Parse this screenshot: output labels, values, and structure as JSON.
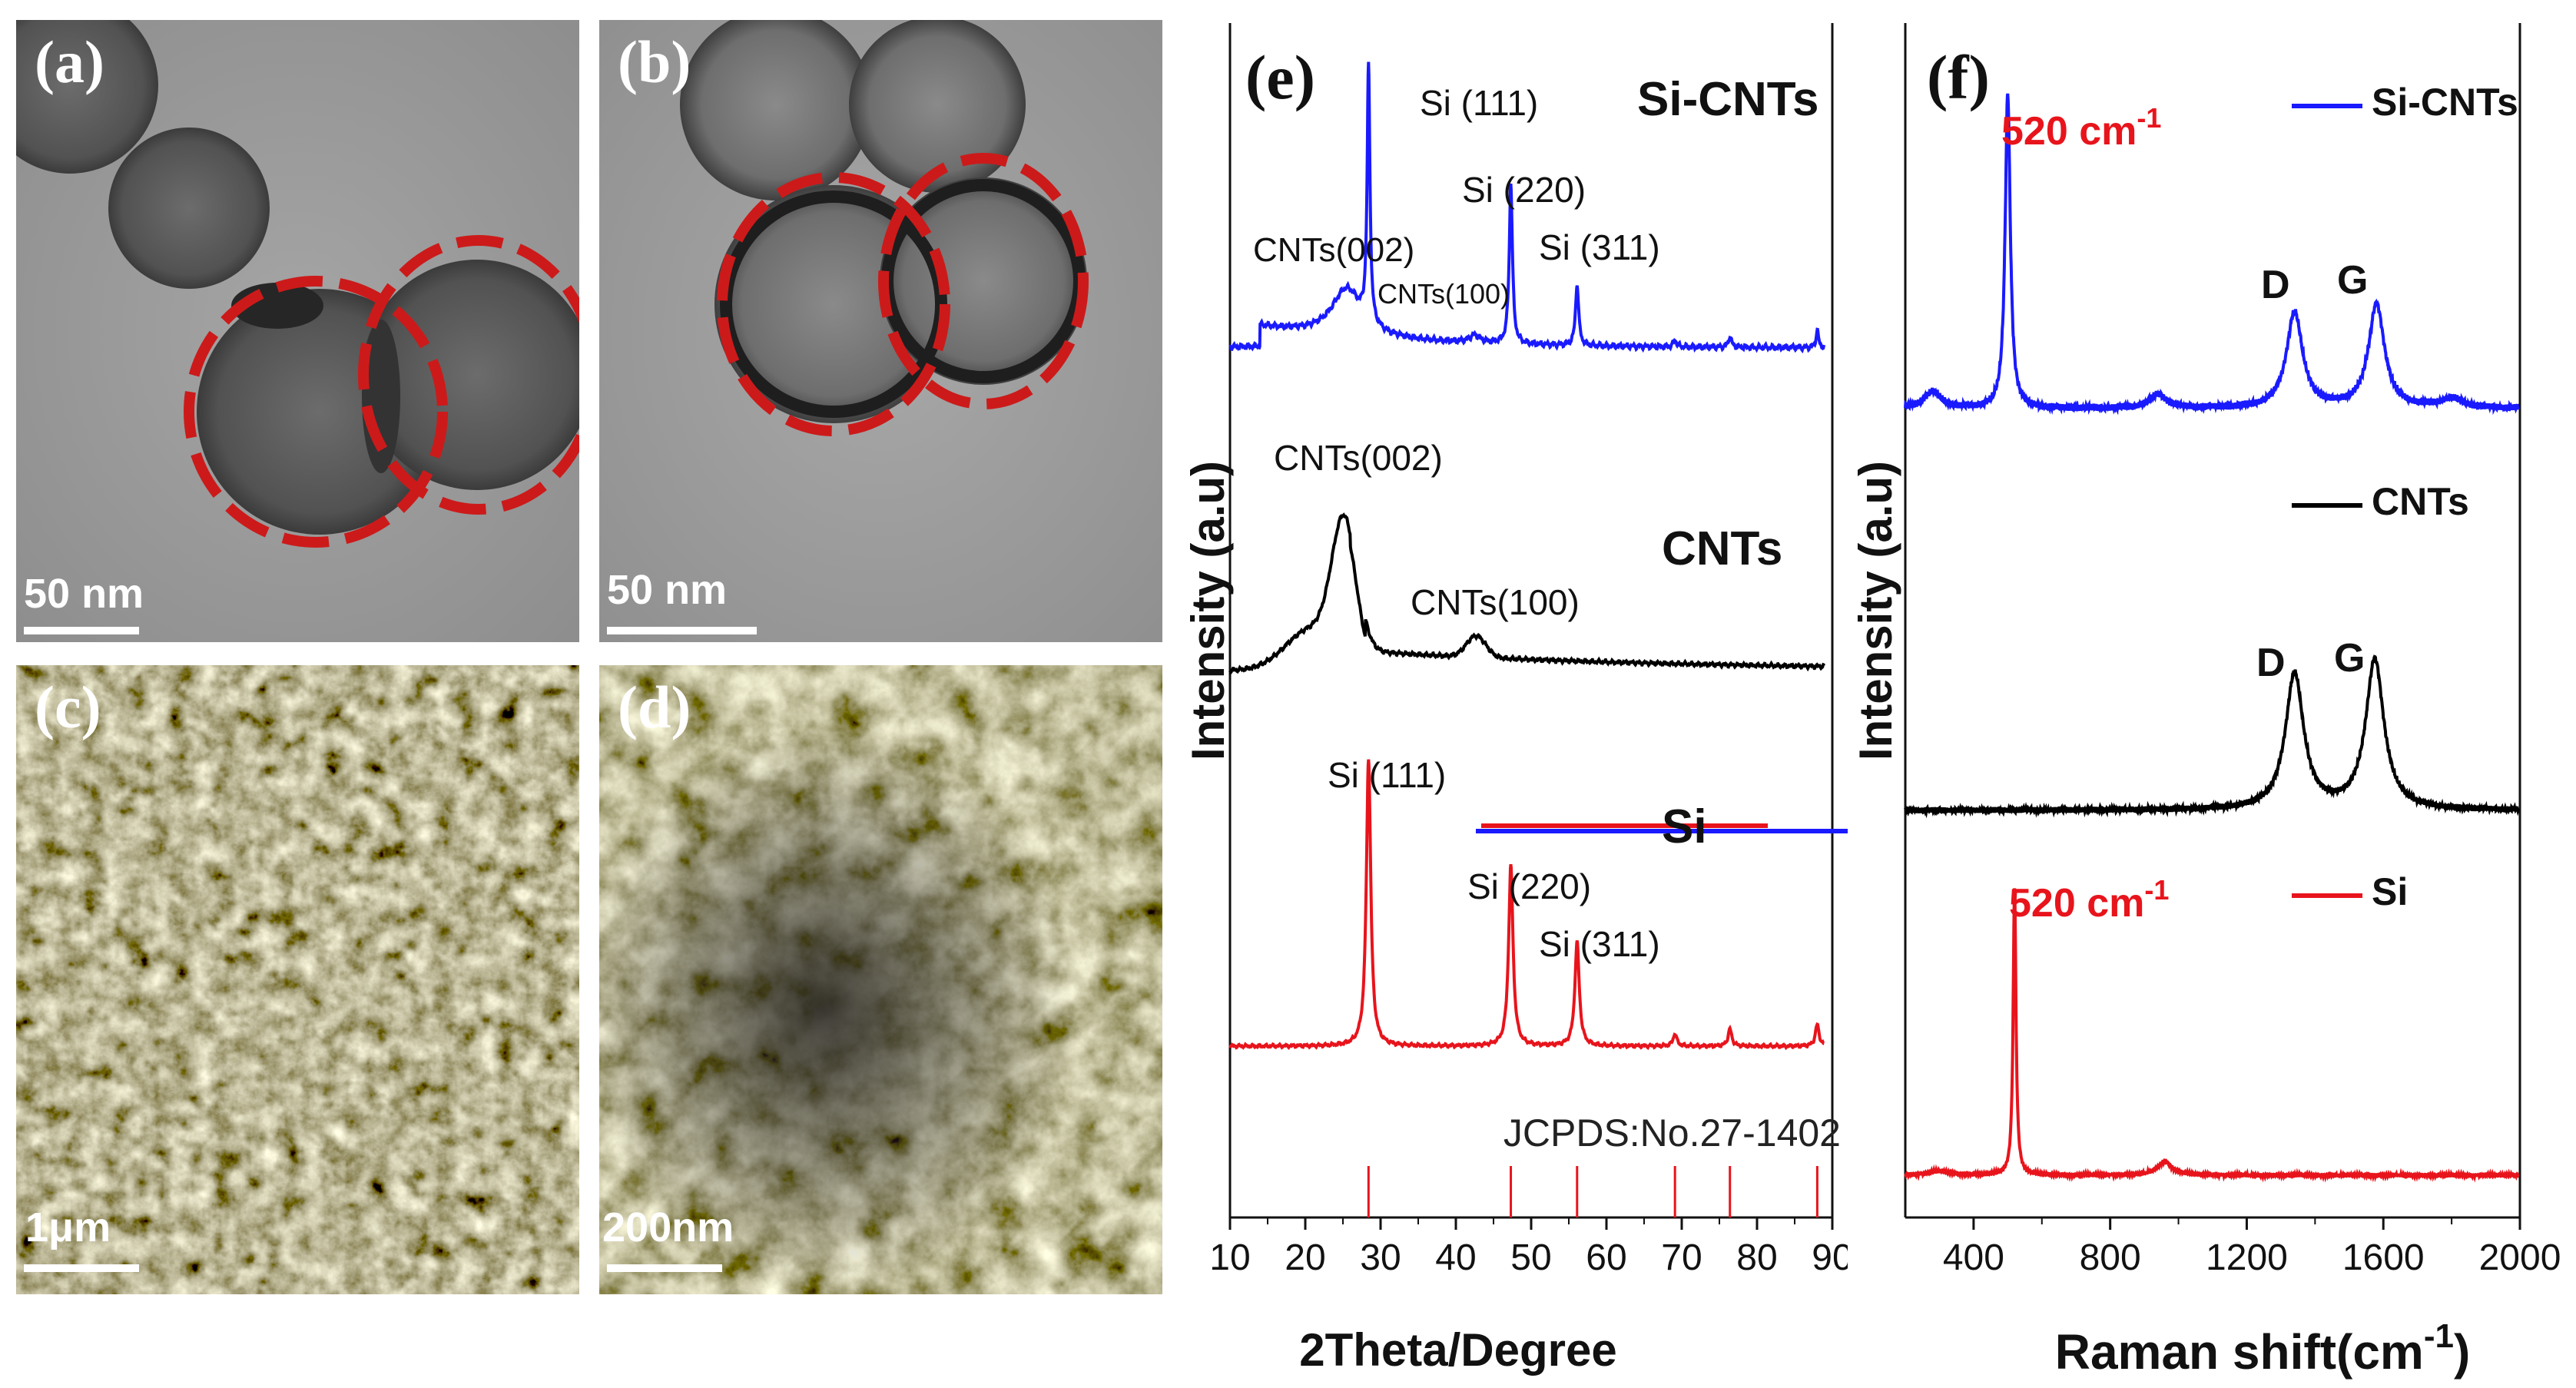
{
  "figure_panels": {
    "a": {
      "label": "(a)",
      "scale_text": "50 nm"
    },
    "b": {
      "label": "(b)",
      "scale_text": "50 nm"
    },
    "c": {
      "label": "(c)",
      "scale_text": "1μm"
    },
    "d": {
      "label": "(d)",
      "scale_text": "200nm"
    }
  },
  "chart_data": [
    {
      "type": "line",
      "panel_label": "(e)",
      "xlabel": "2Theta/Degree",
      "ylabel": "Intensity (a.u)",
      "xlim": [
        10,
        90
      ],
      "x_ticks": [
        10,
        20,
        30,
        40,
        50,
        60,
        70,
        80,
        90
      ],
      "legend": [
        "Si-CNTs",
        "CNTs",
        "Si"
      ],
      "series": [
        {
          "name": "Si-CNTs",
          "color": "#1a1aff",
          "peaks": [
            {
              "label": "CNTs(002)",
              "x": 25.5
            },
            {
              "label": "Si (111)",
              "x": 28.4
            },
            {
              "label": "CNTs(100)",
              "x": 42.5
            },
            {
              "label": "Si (220)",
              "x": 47.3
            },
            {
              "label": "Si (311)",
              "x": 56.1
            }
          ]
        },
        {
          "name": "CNTs",
          "color": "#000000",
          "peaks": [
            {
              "label": "CNTs(002)",
              "x": 25.5
            },
            {
              "label": "CNTs(100)",
              "x": 42.5
            }
          ]
        },
        {
          "name": "Si",
          "color": "#e8141c",
          "peaks": [
            {
              "label": "Si (111)",
              "x": 28.4
            },
            {
              "label": "Si (220)",
              "x": 47.3
            },
            {
              "label": "Si (311)",
              "x": 56.1
            }
          ]
        }
      ],
      "reference": {
        "label": "JCPDS:No.27-1402",
        "color": "#e8141c",
        "lines": [
          28.4,
          47.3,
          56.1,
          69.1,
          76.4,
          88.0
        ]
      }
    },
    {
      "type": "line",
      "panel_label": "(f)",
      "xlabel": "Raman shift(cm",
      "xlabel_sup": "-1",
      "xlabel_end": ")",
      "ylabel": "Intensity (a.u)",
      "xlim": [
        200,
        2000
      ],
      "x_ticks": [
        400,
        800,
        1200,
        1600,
        2000
      ],
      "legend": [
        "Si-CNTs",
        "CNTs",
        "Si"
      ],
      "series": [
        {
          "name": "Si-CNTs",
          "color": "#1a1aff",
          "peaks": [
            {
              "label": "520 cm",
              "sup": "-1",
              "x": 500
            },
            {
              "label": "D",
              "x": 1340
            },
            {
              "label": "G",
              "x": 1580
            }
          ]
        },
        {
          "name": "CNTs",
          "color": "#000000",
          "peaks": [
            {
              "label": "D",
              "x": 1340
            },
            {
              "label": "G",
              "x": 1575
            }
          ]
        },
        {
          "name": "Si",
          "color": "#e8141c",
          "peaks": [
            {
              "label": "520 cm",
              "sup": "-1",
              "x": 520
            }
          ]
        }
      ]
    }
  ]
}
